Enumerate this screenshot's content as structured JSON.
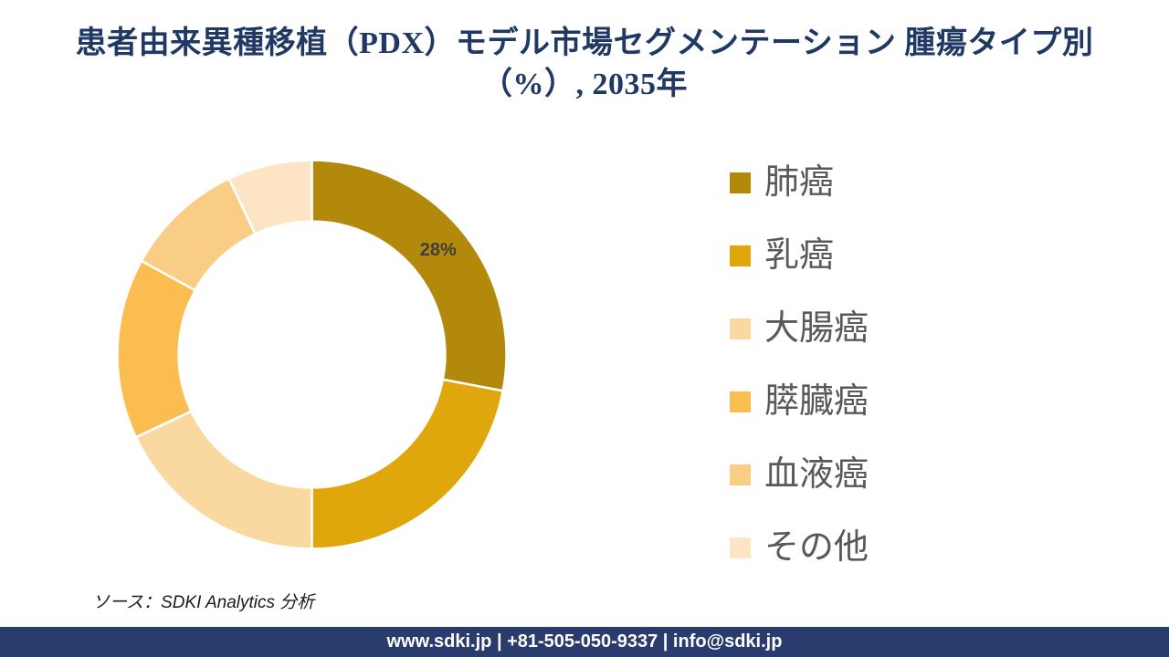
{
  "title": {
    "line1": "患者由来異種移植（PDX）モデル市場セグメンテーション 腫瘍タイプ別",
    "line2": "（%）, 2035年"
  },
  "chart_data": {
    "type": "pie",
    "subtype": "donut",
    "title": "患者由来異種移植（PDX）モデル市場セグメンテーション 腫瘍タイプ別（%）, 2035年",
    "unit": "%",
    "year": "2035年",
    "categories": [
      "肺癌",
      "乳癌",
      "大腸癌",
      "膵臓癌",
      "血液癌",
      "その他"
    ],
    "values": [
      28,
      22,
      18,
      15,
      10,
      7
    ],
    "colors": [
      "#B2890B",
      "#DFA70B",
      "#FAD9A1",
      "#FBBD4F",
      "#F9CD86",
      "#FCE4C4"
    ],
    "start_angle_deg": 0,
    "direction": "clockwise",
    "data_label": {
      "segment": "肺癌",
      "text": "28%"
    },
    "legend_position": "right",
    "donut_hole_ratio": 0.685
  },
  "legend": {
    "items": [
      {
        "label": "肺癌"
      },
      {
        "label": "乳癌"
      },
      {
        "label": "大腸癌"
      },
      {
        "label": "膵臓癌"
      },
      {
        "label": "血液癌"
      },
      {
        "label": "その他"
      }
    ]
  },
  "source": {
    "text": "ソース：SDKI Analytics  分析"
  },
  "footer": {
    "text": "www.sdki.jp | +81-505-050-9337 | info@sdki.jp"
  },
  "colors": {
    "title": "#1F3864",
    "footer_bg": "#2A3B6E",
    "legend_text": "#595959",
    "data_label_text": "#3F3F3F",
    "source_text": "#1A1A1A",
    "separator": "#FFFFFF"
  }
}
